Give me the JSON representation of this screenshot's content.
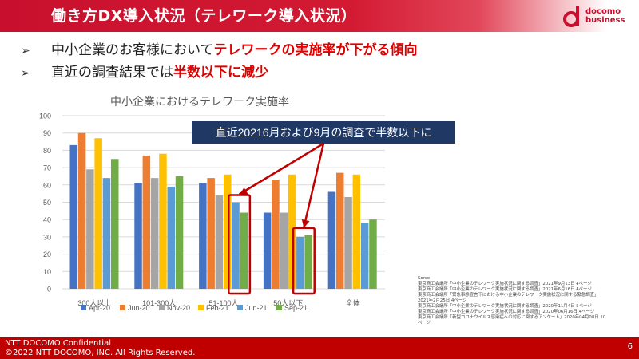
{
  "header": {
    "title": "働き方DX導入状況（テレワーク導入状況）",
    "logo_line1": "docomo",
    "logo_line2": "business"
  },
  "bullets": [
    {
      "marker": "➢",
      "plain": "中小企業のお客様において",
      "highlight": "テレワークの実施率が下がる傾向",
      "plain2": ""
    },
    {
      "marker": "➢",
      "plain": "直近の調査結果では",
      "highlight": "半数以下に",
      "plain2": "減少"
    }
  ],
  "chart_data": {
    "type": "bar",
    "title": "中小企業におけるテレワーク実施率",
    "categories": [
      "300人以上",
      "101-300人",
      "51-100人",
      "50人以下",
      "全体"
    ],
    "series": [
      {
        "name": "Apr-20",
        "color": "#4472c4",
        "values": [
          83,
          61,
          61,
          44,
          56
        ]
      },
      {
        "name": "Jun-20",
        "color": "#ed7d31",
        "values": [
          90,
          77,
          64,
          63,
          67
        ]
      },
      {
        "name": "Nov-20",
        "color": "#a5a5a5",
        "values": [
          69,
          64,
          54,
          44,
          53
        ]
      },
      {
        "name": "Feb-21",
        "color": "#ffc000",
        "values": [
          87,
          78,
          66,
          66,
          66
        ]
      },
      {
        "name": "Jun-21",
        "color": "#5b9bd5",
        "values": [
          64,
          59,
          50,
          30,
          38
        ]
      },
      {
        "name": "Sep-21",
        "color": "#70ad47",
        "values": [
          75,
          65,
          44,
          31,
          40
        ]
      }
    ],
    "ylim": [
      0,
      100
    ],
    "yticks": [
      0,
      10,
      20,
      30,
      40,
      50,
      60,
      70,
      80,
      90,
      100
    ],
    "gridlines": true,
    "legend": "bottom",
    "annotation": "直近20216月および9月の調査で半数以下に",
    "highlighted": [
      {
        "category": "51-100人",
        "series": [
          "Jun-21",
          "Sep-21"
        ]
      },
      {
        "category": "50人以下",
        "series": [
          "Jun-21",
          "Sep-21"
        ]
      }
    ]
  },
  "sources": {
    "heading": "Sorce",
    "lines": [
      "東京商工会議所「中小企業のテレワーク実施状況に関する調査」2021年9月13日  4ページ",
      "東京商工会議所「中小企業のテレワーク実施状況に関する調査」2021年6月16日  4ページ",
      "東京商工会議所「緊急事態宣言下における中小企業のテレワーク実施状況に関する緊急調査」",
      "2021年2月25日  4ページ",
      "東京商工会議所「中小企業のテレワーク実施状況に関する調査」2020年11月4日  5ページ",
      "東京商工会議所「中小企業のテレワーク実施状況に関する調査」2020年06月16日  4ページ",
      "東京商工会議所「新型コロナウイルス感染症への対応に関するアンケート」2020年04月08日  10",
      "ページ"
    ]
  },
  "footer": {
    "line1": "NTT DOCOMO Confidential",
    "line2": "©2022 NTT DOCOMO, INC. All Rights Reserved.",
    "page": "6"
  }
}
